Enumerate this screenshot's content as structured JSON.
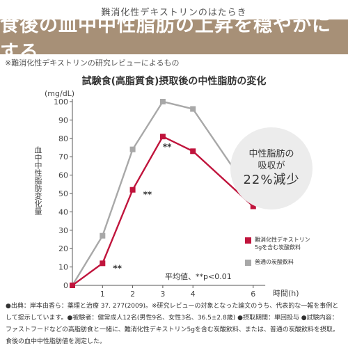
{
  "header": {
    "kicker": "難消化性デキストリンのはたらき",
    "title": "食後の血中中性脂肪の上昇を穏やかにする",
    "title_bg": "#a79077"
  },
  "note": "※難消化性デキストリンの研究レビューによるもの",
  "chart_data": {
    "type": "line",
    "title": "試験食(高脂質食)摂取後の中性脂肪の変化",
    "ylabel": "血中中性脂肪変化量",
    "yunit": "(mg/dL)",
    "xlabel": "時間(h)",
    "ylim": [
      0,
      100
    ],
    "yticks": [
      0,
      10,
      20,
      30,
      40,
      50,
      60,
      70,
      80,
      90,
      100
    ],
    "xticks": [
      1,
      2,
      3,
      4,
      6
    ],
    "grid": false,
    "legend_position": "bottom-right",
    "series": [
      {
        "name": "難消化性デキストリン5gを含む炭酸飲料",
        "legend_lines": [
          "難消化性デキストリン",
          "5gを含む炭酸飲料"
        ],
        "color": "#c0143c",
        "x": [
          0,
          1,
          2,
          3,
          4,
          6
        ],
        "y": [
          0,
          12,
          52,
          81,
          73,
          43
        ]
      },
      {
        "name": "普通の炭酸飲料",
        "legend_lines": [
          "普通の炭酸飲料"
        ],
        "color": "#a8a8a8",
        "x": [
          0,
          1,
          2,
          3,
          4,
          6
        ],
        "y": [
          0,
          27,
          74,
          100,
          96,
          48
        ]
      }
    ],
    "annotations": [
      {
        "x": 1,
        "text": "**"
      },
      {
        "x": 2,
        "text": "**"
      },
      {
        "x": 3,
        "text": "**"
      }
    ],
    "note": "平均値、**p<0.01"
  },
  "callout": {
    "line1": "中性脂肪の",
    "line2": "吸収が",
    "line3": "22%減少"
  },
  "footer": {
    "text": "●出典：岸本由香ら：薬理と治療 37. 277(2009)。※研究レビューの対象となった論文のうち、代表的な一報を事例として提示しています。●被験者：健常成人12名(男性9名、女性3名、36.5±2.8歳) ●摂取期間：単回投与 ●試験内容：ファストフードなどの高脂肪食と一緒に、難消化性デキストリン5gを含む炭酸飲料、または、普通の炭酸飲料を摂取。食後の血中中性脂肪値を測定した。"
  }
}
